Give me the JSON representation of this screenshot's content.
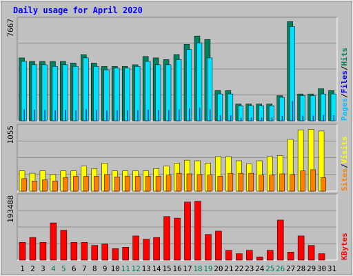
{
  "title": "Daily usage for April 2020",
  "colors": {
    "background": "#c0c0c0",
    "hits": "#00805c",
    "files": "#00e0ff",
    "pages": "#00c0ff",
    "visits": "#ffff00",
    "sites": "#ff8000",
    "kbytes": "#ff0000",
    "title": "#0000ff",
    "weekend_label": "#00805c",
    "weekday_label": "#000000"
  },
  "chart_data": [
    {
      "type": "bar",
      "panel": "hits-files-pages",
      "ymax_label": "7667",
      "ymax": 7667,
      "legend": [
        {
          "name": "Pages",
          "color": "#00c0ff"
        },
        {
          "name": "/",
          "color": "#000000"
        },
        {
          "name": "Files",
          "color": "#0000ff"
        },
        {
          "name": "/",
          "color": "#000000"
        },
        {
          "name": "Hits",
          "color": "#00805c"
        }
      ],
      "series": [
        {
          "name": "Hits",
          "values": [
            4850,
            4580,
            4580,
            4580,
            4580,
            4450,
            5100,
            4450,
            4190,
            4190,
            4190,
            4320,
            4960,
            4850,
            4720,
            5110,
            5890,
            6540,
            6270,
            2330,
            2330,
            1290,
            1290,
            1290,
            1290,
            1940,
            7660,
            2070,
            2070,
            2470,
            2330
          ]
        },
        {
          "name": "Files",
          "values": [
            4580,
            4320,
            4320,
            4190,
            4320,
            4190,
            4850,
            4190,
            3930,
            4060,
            4060,
            4190,
            4580,
            4320,
            4320,
            4720,
            5500,
            6010,
            4850,
            2070,
            2070,
            1160,
            1160,
            1160,
            1160,
            1810,
            7270,
            1940,
            1940,
            2070,
            2070
          ]
        },
        {
          "name": "Pages",
          "values": [
            880,
            860,
            820,
            800,
            840,
            790,
            900,
            820,
            780,
            800,
            790,
            820,
            860,
            840,
            820,
            880,
            940,
            1000,
            900,
            420,
            420,
            250,
            250,
            250,
            250,
            380,
            1520,
            390,
            400,
            440,
            420
          ]
        }
      ]
    },
    {
      "type": "bar",
      "panel": "visits-sites",
      "ymax_label": "1055",
      "ymax": 1055,
      "legend": [
        {
          "name": "Sites",
          "color": "#ff8000"
        },
        {
          "name": "/",
          "color": "#000000"
        },
        {
          "name": "Visits",
          "color": "#ffff00"
        }
      ],
      "series": [
        {
          "name": "Visits",
          "values": [
            340,
            300,
            340,
            280,
            340,
            340,
            420,
            380,
            470,
            340,
            340,
            340,
            340,
            380,
            420,
            470,
            520,
            510,
            470,
            580,
            580,
            510,
            460,
            510,
            580,
            600,
            870,
            1030,
            1040,
            1010,
            0
          ]
        },
        {
          "name": "Sites",
          "values": [
            210,
            170,
            190,
            170,
            230,
            250,
            250,
            250,
            280,
            240,
            250,
            250,
            250,
            250,
            270,
            300,
            290,
            280,
            270,
            250,
            300,
            300,
            300,
            270,
            270,
            290,
            280,
            340,
            360,
            230,
            0
          ]
        }
      ]
    },
    {
      "type": "bar",
      "panel": "kbytes",
      "ymax_label": "193488",
      "ymax": 193488,
      "legend": [
        {
          "name": "KBytes",
          "color": "#ff0000"
        }
      ],
      "series": [
        {
          "name": "KBytes",
          "values": [
            55400,
            70600,
            55400,
            116000,
            93300,
            55400,
            55400,
            45900,
            50500,
            35900,
            40300,
            75400,
            65500,
            70600,
            136000,
            131000,
            181000,
            183500,
            80200,
            90500,
            30700,
            20200,
            30700,
            10100,
            30700,
            125000,
            25300,
            75400,
            45900,
            20200,
            0
          ]
        }
      ]
    }
  ],
  "x_axis": {
    "labels": [
      "1",
      "2",
      "3",
      "4",
      "5",
      "6",
      "7",
      "8",
      "9",
      "10",
      "11",
      "12",
      "13",
      "14",
      "15",
      "16",
      "17",
      "18",
      "19",
      "20",
      "21",
      "22",
      "23",
      "24",
      "25",
      "26",
      "27",
      "28",
      "29",
      "30",
      "31"
    ],
    "weekend_days": [
      4,
      5,
      11,
      12,
      18,
      19,
      25,
      26
    ]
  }
}
